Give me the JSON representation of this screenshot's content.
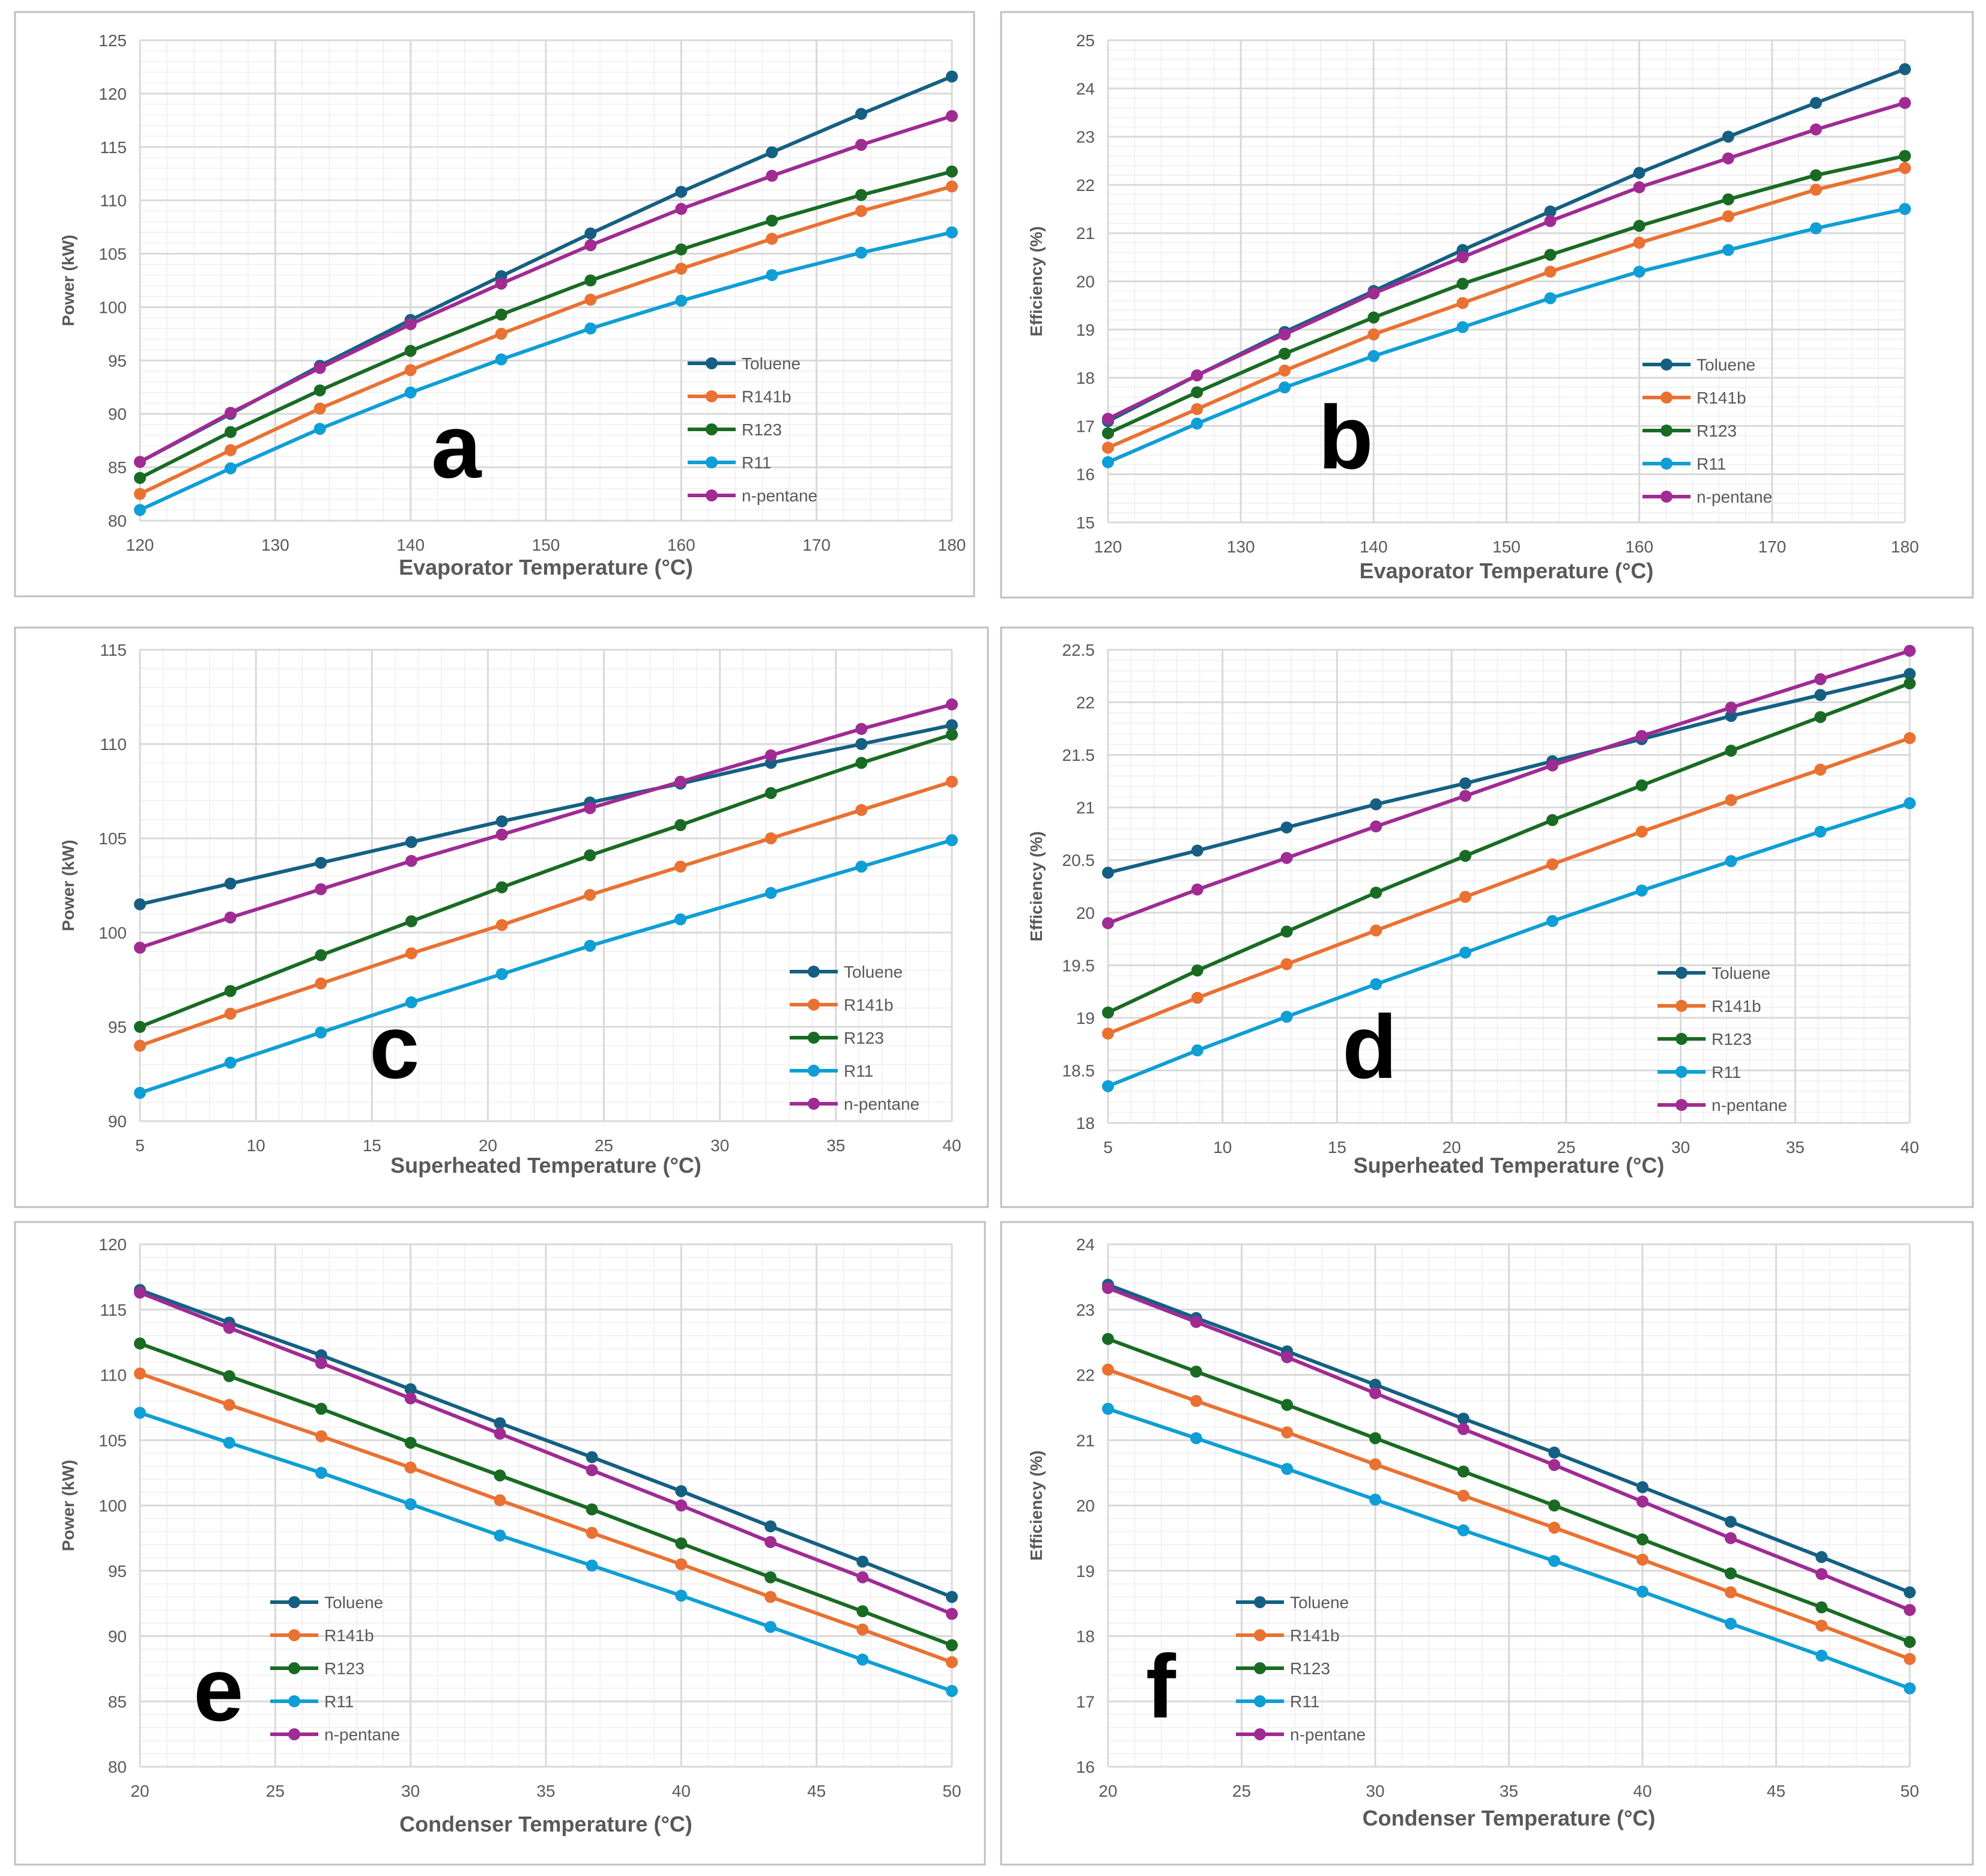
{
  "colors": {
    "Toluene": "#156082",
    "R141b": "#E97132",
    "R123": "#196B24",
    "R11": "#0F9ED5",
    "n-pentane": "#A02B93",
    "grid_major": "#d9d9d9",
    "grid_minor": "#efefef",
    "axis_text": "#595959",
    "border": "#bfbfbf"
  },
  "chart_data": [
    {
      "type": "line",
      "panel_label": "a",
      "title": "",
      "xlabel": "Evaporator Temperature (°C)",
      "ylabel": "Power (kW)",
      "xlim": [
        120,
        180
      ],
      "ylim": [
        80,
        125
      ],
      "xticks": [
        120,
        130,
        140,
        150,
        160,
        170,
        180
      ],
      "yticks": [
        80,
        85,
        90,
        95,
        100,
        105,
        110,
        115,
        120,
        125
      ],
      "x": [
        120,
        126.7,
        133.3,
        140,
        146.7,
        153.3,
        160,
        166.7,
        173.3,
        180
      ],
      "series": [
        {
          "name": "Toluene",
          "values": [
            85.5,
            90.0,
            94.5,
            98.8,
            102.9,
            106.9,
            110.8,
            114.5,
            118.1,
            121.6
          ]
        },
        {
          "name": "R141b",
          "values": [
            82.5,
            86.6,
            90.5,
            94.1,
            97.5,
            100.7,
            103.6,
            106.4,
            109.0,
            111.3
          ]
        },
        {
          "name": "R123",
          "values": [
            84.0,
            88.3,
            92.2,
            95.9,
            99.3,
            102.5,
            105.4,
            108.1,
            110.5,
            112.7
          ]
        },
        {
          "name": "R11",
          "values": [
            81.0,
            84.9,
            88.6,
            92.0,
            95.1,
            98.0,
            100.6,
            103.0,
            105.1,
            107.0
          ]
        },
        {
          "name": "n-pentane",
          "values": [
            85.5,
            90.1,
            94.3,
            98.4,
            102.2,
            105.8,
            109.2,
            112.3,
            115.2,
            117.9
          ]
        }
      ],
      "legend_position": "right"
    },
    {
      "type": "line",
      "panel_label": "b",
      "title": "",
      "xlabel": "Evaporator Temperature (°C)",
      "ylabel": "Efficiency (%)",
      "xlim": [
        120,
        180
      ],
      "ylim": [
        15,
        25
      ],
      "xticks": [
        120,
        130,
        140,
        150,
        160,
        170,
        180
      ],
      "yticks": [
        15,
        16,
        17,
        18,
        19,
        20,
        21,
        22,
        23,
        24,
        25
      ],
      "x": [
        120,
        126.7,
        133.3,
        140,
        146.7,
        153.3,
        160,
        166.7,
        173.3,
        180
      ],
      "series": [
        {
          "name": "Toluene",
          "values": [
            17.1,
            18.05,
            18.95,
            19.8,
            20.65,
            21.45,
            22.25,
            23.0,
            23.7,
            24.4
          ]
        },
        {
          "name": "R141b",
          "values": [
            16.55,
            17.35,
            18.15,
            18.9,
            19.55,
            20.2,
            20.8,
            21.35,
            21.9,
            22.35
          ]
        },
        {
          "name": "R123",
          "values": [
            16.85,
            17.7,
            18.5,
            19.25,
            19.95,
            20.55,
            21.15,
            21.7,
            22.2,
            22.6
          ]
        },
        {
          "name": "R11",
          "values": [
            16.25,
            17.05,
            17.8,
            18.45,
            19.05,
            19.65,
            20.2,
            20.65,
            21.1,
            21.5
          ]
        },
        {
          "name": "n-pentane",
          "values": [
            17.15,
            18.05,
            18.9,
            19.75,
            20.5,
            21.25,
            21.95,
            22.55,
            23.15,
            23.7
          ]
        }
      ],
      "legend_position": "right"
    },
    {
      "type": "line",
      "panel_label": "c",
      "title": "",
      "xlabel": "Superheated Temperature  (°C)",
      "ylabel": "Power (kW)",
      "xlim": [
        5,
        40
      ],
      "ylim": [
        90,
        115
      ],
      "xticks": [
        5,
        10,
        15,
        20,
        25,
        30,
        35,
        40
      ],
      "yticks": [
        90,
        95,
        100,
        105,
        110,
        115
      ],
      "x": [
        5,
        8.9,
        12.8,
        16.7,
        20.6,
        24.4,
        28.3,
        32.2,
        36.1,
        40
      ],
      "series": [
        {
          "name": "Toluene",
          "values": [
            101.5,
            102.6,
            103.7,
            104.8,
            105.9,
            106.9,
            107.9,
            109.0,
            110.0,
            111.0
          ]
        },
        {
          "name": "R141b",
          "values": [
            94.0,
            95.7,
            97.3,
            98.9,
            100.4,
            102.0,
            103.5,
            105.0,
            106.5,
            108.0
          ]
        },
        {
          "name": "R123",
          "values": [
            95.0,
            96.9,
            98.8,
            100.6,
            102.4,
            104.1,
            105.7,
            107.4,
            109.0,
            110.5
          ]
        },
        {
          "name": "R11",
          "values": [
            91.5,
            93.1,
            94.7,
            96.3,
            97.8,
            99.3,
            100.7,
            102.1,
            103.5,
            104.9
          ]
        },
        {
          "name": "n-pentane",
          "values": [
            99.2,
            100.8,
            102.3,
            103.8,
            105.2,
            106.6,
            108.0,
            109.4,
            110.8,
            112.1
          ]
        }
      ],
      "legend_position": "lower-right"
    },
    {
      "type": "line",
      "panel_label": "d",
      "title": "",
      "xlabel": "Superheated Temperature  (°C)",
      "ylabel": "Efficiency (%)",
      "xlim": [
        5,
        40
      ],
      "ylim": [
        18,
        22.5
      ],
      "xticks": [
        5,
        10,
        15,
        20,
        25,
        30,
        35,
        40
      ],
      "yticks": [
        18,
        18.5,
        19,
        19.5,
        20,
        20.5,
        21,
        21.5,
        22,
        22.5
      ],
      "x": [
        5,
        8.9,
        12.8,
        16.7,
        20.6,
        24.4,
        28.3,
        32.2,
        36.1,
        40
      ],
      "series": [
        {
          "name": "Toluene",
          "values": [
            20.38,
            20.59,
            20.81,
            21.03,
            21.23,
            21.44,
            21.65,
            21.87,
            22.07,
            22.27
          ]
        },
        {
          "name": "R141b",
          "values": [
            18.85,
            19.19,
            19.51,
            19.83,
            20.15,
            20.46,
            20.77,
            21.07,
            21.36,
            21.66
          ]
        },
        {
          "name": "R123",
          "values": [
            19.05,
            19.45,
            19.82,
            20.19,
            20.54,
            20.88,
            21.21,
            21.54,
            21.86,
            22.18
          ]
        },
        {
          "name": "R11",
          "values": [
            18.35,
            18.69,
            19.01,
            19.32,
            19.62,
            19.92,
            20.21,
            20.49,
            20.77,
            21.04
          ]
        },
        {
          "name": "n-pentane",
          "values": [
            19.9,
            20.22,
            20.52,
            20.82,
            21.11,
            21.4,
            21.68,
            21.95,
            22.22,
            22.49
          ]
        }
      ],
      "legend_position": "lower-right"
    },
    {
      "type": "line",
      "panel_label": "e",
      "title": "",
      "xlabel": "Condenser Temperature  (°C)",
      "ylabel": "Power (kW)",
      "xlim": [
        20,
        50
      ],
      "ylim": [
        80,
        120
      ],
      "xticks": [
        20,
        25,
        30,
        35,
        40,
        45,
        50
      ],
      "yticks": [
        80,
        85,
        90,
        95,
        100,
        105,
        110,
        115,
        120
      ],
      "x": [
        20,
        23.3,
        26.7,
        30,
        33.3,
        36.7,
        40,
        43.3,
        46.7,
        50
      ],
      "series": [
        {
          "name": "Toluene",
          "values": [
            116.5,
            114.0,
            111.5,
            108.9,
            106.3,
            103.7,
            101.1,
            98.4,
            95.7,
            93.0
          ]
        },
        {
          "name": "R141b",
          "values": [
            110.1,
            107.7,
            105.3,
            102.9,
            100.4,
            97.9,
            95.5,
            93.0,
            90.5,
            88.0
          ]
        },
        {
          "name": "R123",
          "values": [
            112.4,
            109.9,
            107.4,
            104.8,
            102.3,
            99.7,
            97.1,
            94.5,
            91.9,
            89.3
          ]
        },
        {
          "name": "R11",
          "values": [
            107.1,
            104.8,
            102.5,
            100.1,
            97.7,
            95.4,
            93.1,
            90.7,
            88.2,
            85.8
          ]
        },
        {
          "name": "n-pentane",
          "values": [
            116.3,
            113.6,
            110.9,
            108.2,
            105.5,
            102.7,
            100.0,
            97.2,
            94.5,
            91.7
          ]
        }
      ],
      "legend_position": "lower-left"
    },
    {
      "type": "line",
      "panel_label": "f",
      "title": "",
      "xlabel": "Condenser Temperature  (°C)",
      "ylabel": "Efficiency (%)",
      "xlim": [
        20,
        50
      ],
      "ylim": [
        16,
        24
      ],
      "xticks": [
        20,
        25,
        30,
        35,
        40,
        45,
        50
      ],
      "yticks": [
        16,
        17,
        18,
        19,
        20,
        21,
        22,
        23,
        24
      ],
      "x": [
        20,
        23.3,
        26.7,
        30,
        33.3,
        36.7,
        40,
        43.3,
        46.7,
        50
      ],
      "series": [
        {
          "name": "Toluene",
          "values": [
            23.38,
            22.87,
            22.36,
            21.85,
            21.33,
            20.81,
            20.28,
            19.75,
            19.21,
            18.67
          ]
        },
        {
          "name": "R141b",
          "values": [
            22.08,
            21.6,
            21.12,
            20.63,
            20.15,
            19.66,
            19.17,
            18.67,
            18.16,
            17.65
          ]
        },
        {
          "name": "R123",
          "values": [
            22.55,
            22.05,
            21.54,
            21.03,
            20.52,
            20.0,
            19.48,
            18.96,
            18.44,
            17.91
          ]
        },
        {
          "name": "R11",
          "values": [
            21.48,
            21.03,
            20.56,
            20.09,
            19.62,
            19.15,
            18.68,
            18.19,
            17.7,
            17.2
          ]
        },
        {
          "name": "n-pentane",
          "values": [
            23.33,
            22.81,
            22.27,
            21.72,
            21.17,
            20.62,
            20.06,
            19.5,
            18.95,
            18.4
          ]
        }
      ],
      "legend_position": "lower-left"
    }
  ]
}
